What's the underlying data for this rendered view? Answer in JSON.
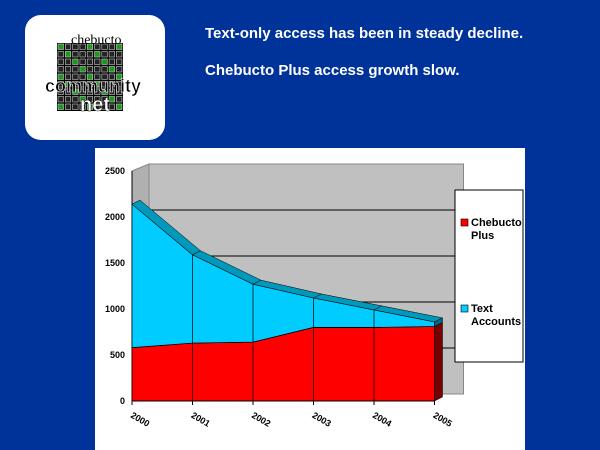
{
  "logo": {
    "line1": "chebucto",
    "line2": "community",
    "line3": "net"
  },
  "headlines": [
    "Text-only access has been in steady decline.",
    "Chebucto Plus access growth slow."
  ],
  "chart_data": {
    "type": "area",
    "stacked": true,
    "three_d": true,
    "categories": [
      "2000",
      "2001",
      "2002",
      "2003",
      "2004",
      "2005"
    ],
    "series": [
      {
        "name": "Chebucto Plus",
        "values": [
          580,
          630,
          640,
          800,
          800,
          810
        ],
        "color": "#ff0000"
      },
      {
        "name": "Text Accounts",
        "values": [
          1560,
          960,
          630,
          320,
          190,
          50
        ],
        "color": "#00ccff"
      }
    ],
    "yticks": [
      "0",
      "500",
      "1000",
      "1500",
      "2000",
      "2500"
    ],
    "ylim": [
      0,
      2500
    ],
    "grid": true,
    "legend": {
      "placement": "right",
      "items": [
        [
          "Chebucto",
          "Plus"
        ],
        [
          "Text",
          "Accounts"
        ]
      ]
    }
  }
}
